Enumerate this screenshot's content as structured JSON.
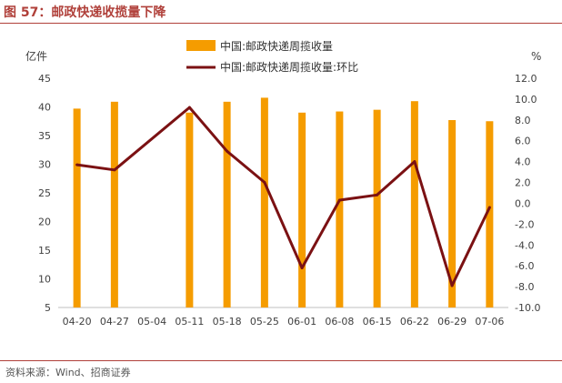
{
  "header": {
    "title": "图 57：邮政快递收揽量下降"
  },
  "footer": {
    "source": "资料来源：Wind、招商证券"
  },
  "colors": {
    "bar": "#f59c00",
    "line": "#7b1113",
    "title": "#b0403a"
  },
  "chart_data": {
    "type": "bar",
    "categories": [
      "04-20",
      "04-27",
      "05-04",
      "05-11",
      "05-18",
      "05-25",
      "06-01",
      "06-08",
      "06-15",
      "06-22",
      "06-29",
      "07-06"
    ],
    "y_left": {
      "label": "亿件",
      "lim": [
        5,
        45
      ],
      "ticks": [
        "5",
        "10",
        "15",
        "20",
        "25",
        "30",
        "35",
        "40",
        "45"
      ]
    },
    "y_right": {
      "label": "%",
      "lim": [
        -10,
        12
      ],
      "ticks": [
        "-10.0",
        "-8.0",
        "-6.0",
        "-4.0",
        "-2.0",
        "0.0",
        "2.0",
        "4.0",
        "6.0",
        "8.0",
        "10.0",
        "12.0"
      ]
    },
    "series": [
      {
        "name": "中国:邮政快递周揽收量",
        "kind": "bar",
        "axis": "left",
        "values": [
          39.7,
          40.9,
          null,
          39.0,
          40.9,
          41.6,
          39.0,
          39.2,
          39.5,
          41.0,
          37.7,
          37.5
        ]
      },
      {
        "name": "中国:邮政快递周揽收量:环比",
        "kind": "line",
        "axis": "right",
        "values": [
          3.7,
          3.2,
          null,
          9.2,
          5.0,
          2.0,
          -6.2,
          0.3,
          0.8,
          4.0,
          -7.9,
          -0.4
        ]
      }
    ],
    "legend_position": "top-center",
    "grid": false
  }
}
